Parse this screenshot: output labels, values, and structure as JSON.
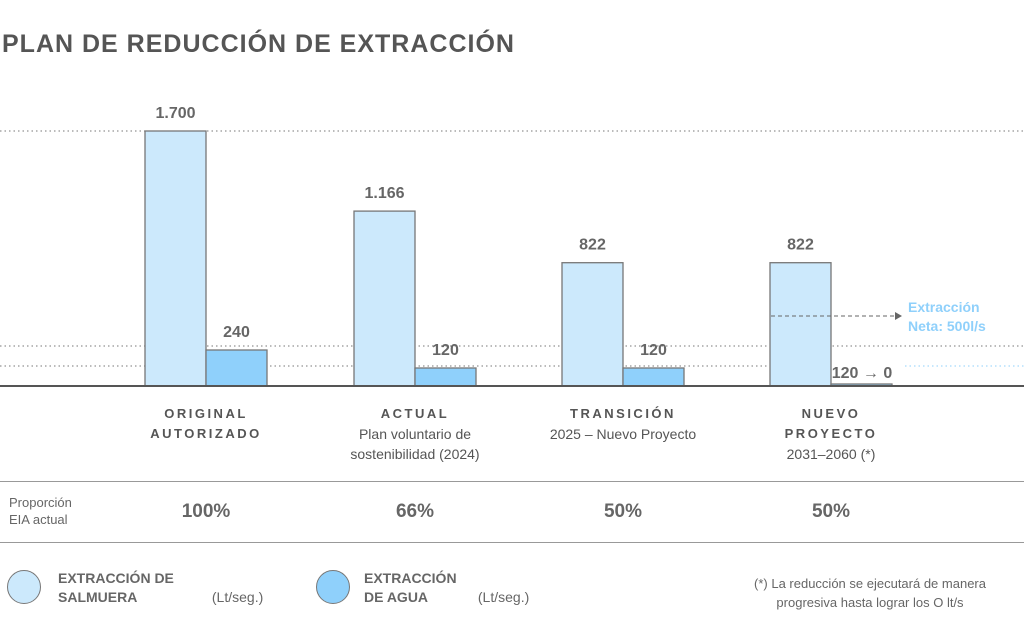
{
  "chart_data": {
    "type": "bar",
    "title": "PLAN DE REDUCCIÓN DE EXTRACCIÓN",
    "categories": [
      {
        "title": "ORIGINAL AUTORIZADO",
        "subtitle": ""
      },
      {
        "title": "ACTUAL",
        "subtitle": "Plan voluntario de sostenibilidad (2024)"
      },
      {
        "title": "TRANSICIÓN",
        "subtitle": "2025 – Nuevo Proyecto"
      },
      {
        "title": "NUEVO PROYECTO",
        "subtitle": "2031–2060 (*)"
      }
    ],
    "series": [
      {
        "name": "EXTRACCIÓN DE SALMUERA",
        "unit": "(Lt/seg.)",
        "color": "#cce9fc",
        "values": [
          1700,
          1166,
          822,
          822
        ],
        "labels": [
          "1.700",
          "1.166",
          "822",
          "822"
        ]
      },
      {
        "name": "EXTRACCIÓN DE AGUA",
        "unit": "(Lt/seg.)",
        "color": "#8fd0fb",
        "values": [
          240,
          120,
          120,
          0
        ],
        "labels": [
          "240",
          "120",
          "120",
          "120 → 0"
        ]
      }
    ],
    "ylim": [
      0,
      1700
    ],
    "grid": "dotted reference lines at 1700, 240, 120",
    "annotation": "Extracción Neta: 500l/s",
    "annotation_color": "#8fd0fb"
  },
  "proportion": {
    "label": "Proporción EIA actual",
    "values": [
      "100%",
      "66%",
      "50%",
      "50%"
    ]
  },
  "footnote": "(*) La reducción se ejecutará de manera progresiva hasta lograr los O lt/s"
}
